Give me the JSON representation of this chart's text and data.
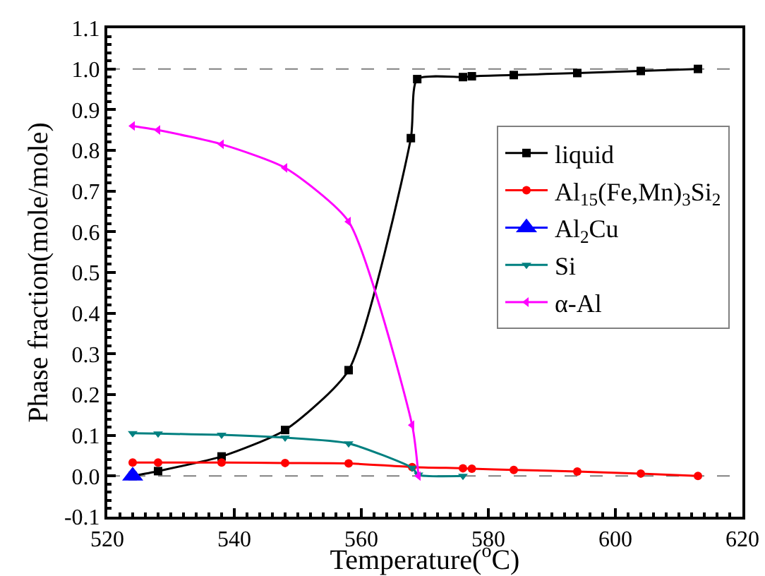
{
  "chart_data": {
    "type": "line",
    "xlabel": "Temperature($^{o}$C)",
    "ylabel": "Phase fraction(mole/mole)",
    "xlim": [
      520,
      620
    ],
    "xticks": [
      520,
      540,
      560,
      580,
      600,
      620
    ],
    "ylim": [
      -0.1,
      1.1
    ],
    "yticks": [
      -0.1,
      {
        "value": 0,
        "label": "0.0"
      },
      0.1,
      0.2,
      0.3,
      0.4,
      0.5,
      0.6,
      0.7,
      0.8,
      0.9,
      {
        "value": 1,
        "label": "1.0"
      },
      1.1
    ],
    "legend": "top right",
    "grid": false,
    "line_style": "solid",
    "ref_lines": [
      {
        "axis": "y",
        "value": 1,
        "color": "#808080",
        "line_style": "dashed"
      },
      {
        "axis": "y",
        "value": 0,
        "color": "#808080",
        "line_style": "dashed"
      }
    ],
    "series": [
      {
        "name": "liquid",
        "color": "#000000",
        "marker": "square",
        "x": [
          524,
          528,
          538,
          548,
          558,
          567.8,
          568.8,
          576,
          577.4,
          584,
          594,
          604,
          613
        ],
        "values": [
          0,
          0.012,
          0.048,
          0.113,
          0.26,
          0.83,
          0.975,
          0.98,
          0.982,
          0.985,
          0.99,
          0.995,
          1.0
        ]
      },
      {
        "name": "Al$_{15}$(Fe,Mn)$_{3}$Si$_{2}$",
        "color": "#ff0000",
        "marker": "circle",
        "x": [
          524,
          528,
          538,
          548,
          558,
          568,
          576,
          577.4,
          584,
          594,
          604,
          613
        ],
        "values": [
          0.033,
          0.033,
          0.033,
          0.032,
          0.031,
          0.022,
          0.019,
          0.018,
          0.015,
          0.011,
          0.006,
          0
        ]
      },
      {
        "name": "Al$_{2}$Cu",
        "color": "#0000ff",
        "marker": "triangle",
        "x": [
          524
        ],
        "values": [
          0
        ]
      },
      {
        "name": "Si",
        "color": "#008080",
        "marker": "triangle-down",
        "x": [
          524,
          528,
          538,
          548,
          558,
          568,
          569,
          576
        ],
        "values": [
          0.105,
          0.104,
          0.101,
          0.094,
          0.08,
          0.02,
          0.003,
          0
        ]
      },
      {
        "name": "α-Al",
        "color": "#ff00ff",
        "marker": "triangle-left",
        "x": [
          524,
          528,
          538,
          548,
          558,
          568,
          569
        ],
        "values": [
          0.86,
          0.85,
          0.815,
          0.757,
          0.625,
          0.125,
          0
        ]
      }
    ]
  }
}
